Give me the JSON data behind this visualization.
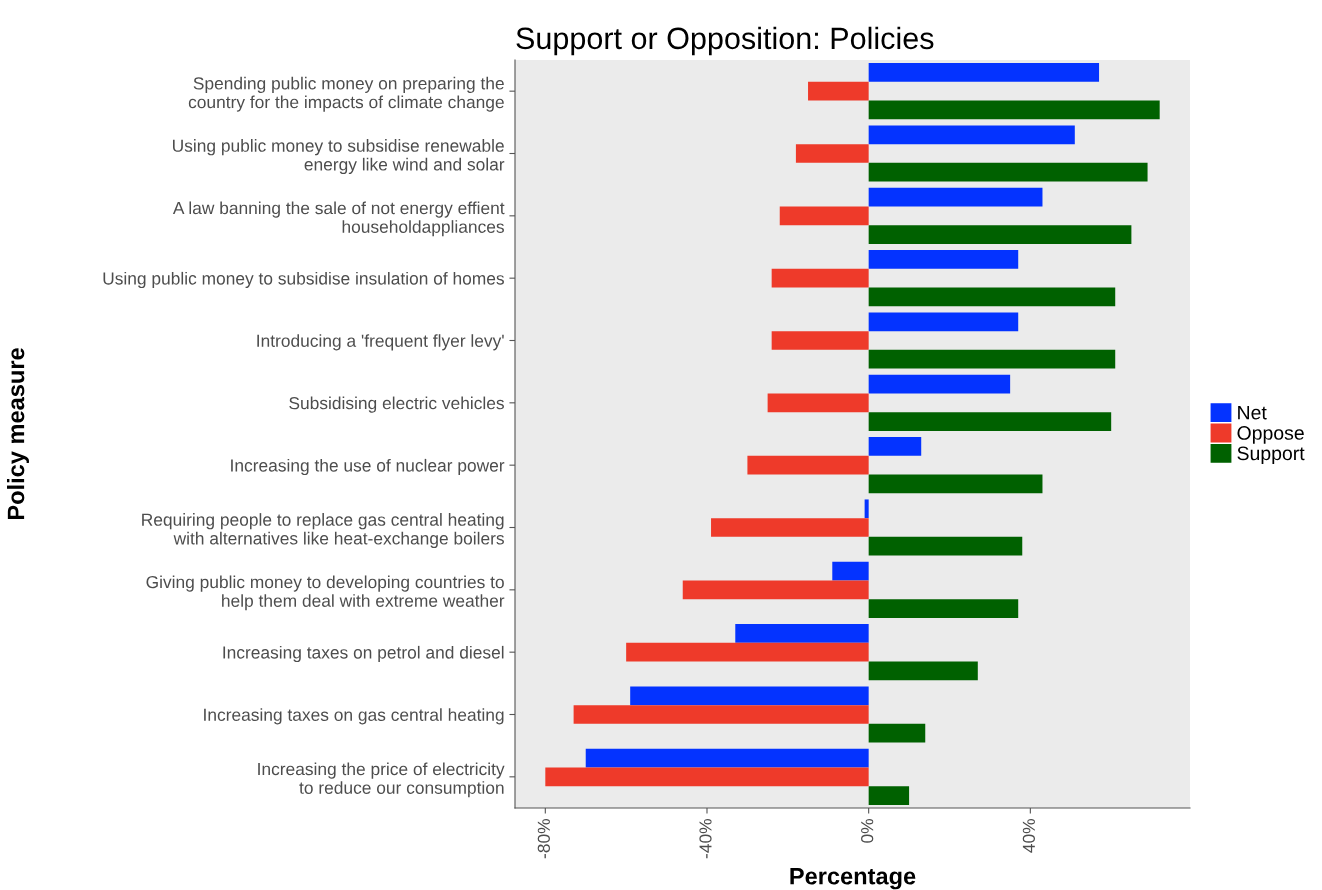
{
  "chart_data": {
    "type": "bar",
    "orientation": "horizontal",
    "title": "Support or Opposition: Policies",
    "xlabel": "Percentage",
    "ylabel": "Policy measure",
    "categories": [
      "Spending public money on preparing the\ncountry for the impacts of climate change",
      "Using public money to subsidise renewable\nenergy like wind and solar",
      "A law banning the sale of not energy effient\nhouseholdappliances",
      "Using public money to subsidise insulation of homes",
      "Introducing a 'frequent flyer levy'",
      "Subsidising electric vehicles",
      "Increasing the use of nuclear power",
      "Requiring people to replace gas central heating\nwith alternatives like heat-exchange boilers",
      "Giving public money to developing countries to\nhelp them deal with extreme weather",
      "Increasing taxes on petrol and diesel",
      "Increasing taxes on gas central heating",
      "Increasing the price of electricity\nto reduce our consumption"
    ],
    "series": [
      {
        "name": "Net",
        "color": "#0433ff",
        "values": [
          57,
          51,
          43,
          37,
          37,
          35,
          13,
          -1,
          -9,
          -33,
          -59,
          -70
        ]
      },
      {
        "name": "Oppose",
        "color": "#ee3a2a",
        "values": [
          -15,
          -18,
          -22,
          -24,
          -24,
          -25,
          -30,
          -39,
          -46,
          -60,
          -73,
          -80
        ]
      },
      {
        "name": "Support",
        "color": "#006100",
        "values": [
          72,
          69,
          65,
          61,
          61,
          60,
          43,
          38,
          37,
          27,
          14,
          10
        ]
      }
    ],
    "xlim": [
      -87.5,
      79.5
    ],
    "xticks": [
      {
        "value": -80,
        "label": "-80%"
      },
      {
        "value": -40,
        "label": "-40%"
      },
      {
        "value": 0,
        "label": "0%"
      },
      {
        "value": 40,
        "label": "40%"
      }
    ],
    "grid": false,
    "legend": "right"
  }
}
